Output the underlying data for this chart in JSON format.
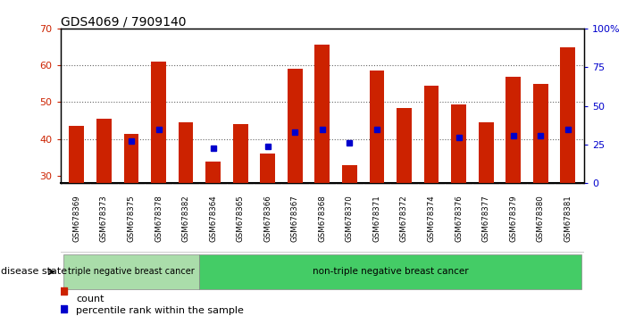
{
  "title": "GDS4069 / 7909140",
  "samples": [
    "GSM678369",
    "GSM678373",
    "GSM678375",
    "GSM678378",
    "GSM678382",
    "GSM678364",
    "GSM678365",
    "GSM678366",
    "GSM678367",
    "GSM678368",
    "GSM678370",
    "GSM678371",
    "GSM678372",
    "GSM678374",
    "GSM678376",
    "GSM678377",
    "GSM678379",
    "GSM678380",
    "GSM678381"
  ],
  "counts": [
    43.5,
    45.5,
    41.5,
    61.0,
    44.5,
    34.0,
    44.0,
    36.0,
    59.0,
    65.5,
    33.0,
    58.5,
    48.5,
    54.5,
    49.5,
    44.5,
    57.0,
    55.0,
    65.0
  ],
  "percentiles": [
    null,
    null,
    39.5,
    42.5,
    null,
    37.5,
    null,
    38.0,
    42.0,
    42.5,
    39.0,
    42.5,
    null,
    null,
    40.5,
    null,
    41.0,
    41.0,
    42.5
  ],
  "ylim_left": [
    28,
    70
  ],
  "ylim_right": [
    0,
    100
  ],
  "yticks_left": [
    30,
    40,
    50,
    60,
    70
  ],
  "yticks_right": [
    0,
    25,
    50,
    75,
    100
  ],
  "ytick_labels_right": [
    "0",
    "25",
    "50",
    "75",
    "100%"
  ],
  "bar_color": "#cc2200",
  "pct_color": "#0000cc",
  "bar_width": 0.55,
  "group1_label": "triple negative breast cancer",
  "group2_label": "non-triple negative breast cancer",
  "group1_count": 5,
  "group2_count": 14,
  "group1_color": "#aaddaa",
  "group2_color": "#44cc66",
  "disease_state_label": "disease state",
  "legend_count_label": "count",
  "legend_pct_label": "percentile rank within the sample",
  "dotted_grid_color": "#666666",
  "tick_label_color_left": "#cc2200",
  "tick_label_color_right": "#0000cc",
  "background_color": "#ffffff",
  "xticklabel_bg": "#cccccc",
  "grid_yticks": [
    40,
    50,
    60
  ]
}
